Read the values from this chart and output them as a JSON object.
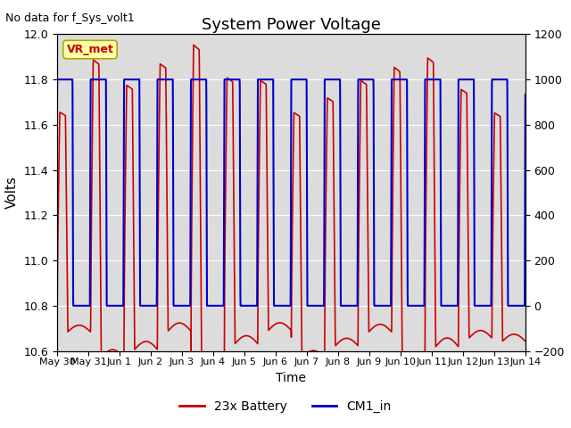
{
  "title": "System Power Voltage",
  "top_left_text": "No data for f_Sys_volt1",
  "ylabel_left": "Volts",
  "xlabel": "Time",
  "ylim_left": [
    10.6,
    12.0
  ],
  "ylim_right": [
    -200,
    1200
  ],
  "yticks_left": [
    10.6,
    10.8,
    11.0,
    11.2,
    11.4,
    11.6,
    11.8,
    12.0
  ],
  "yticks_right": [
    -200,
    0,
    200,
    400,
    600,
    800,
    1000,
    1200
  ],
  "xtick_labels": [
    "May 30",
    "May 31",
    "Jun 1",
    "Jun 2",
    "Jun 3",
    "Jun 4",
    "Jun 5",
    "Jun 6",
    "Jun 7",
    "Jun 8",
    "Jun 9",
    "Jun 10",
    "Jun 11",
    "Jun 12",
    "Jun 13",
    "Jun 14"
  ],
  "vr_met_label": "VR_met",
  "vr_met_color": "#cc0000",
  "vr_met_bg": "#ffffaa",
  "background_color": "#dcdcdc",
  "line_red_label": "23x Battery",
  "line_blue_label": "CM1_in",
  "line_red_color": "#cc0000",
  "line_blue_color": "#0000cc",
  "grid_color": "white",
  "n_cycles": 14,
  "red_low": 10.65,
  "red_high_base": 11.78,
  "blue_low": 10.8,
  "blue_high": 11.8
}
